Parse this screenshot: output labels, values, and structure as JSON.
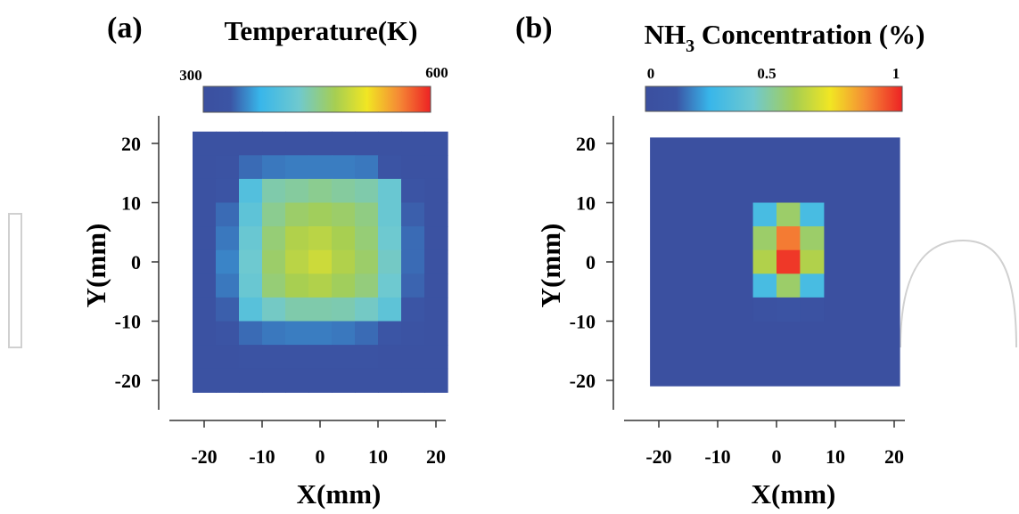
{
  "chart_data": [
    {
      "type": "heatmap",
      "panel_label": "(a)",
      "title": "Temperature(K)",
      "colorbar": {
        "min": 300,
        "max": 600,
        "tick_labels": [
          "300",
          "600"
        ],
        "tick_values": [
          300,
          600
        ],
        "colormap": "jet"
      },
      "xlabel": "X(mm)",
      "ylabel": "Y(mm)",
      "xlim": [
        -22,
        22
      ],
      "ylim": [
        -22,
        22
      ],
      "xticks": [
        "-20",
        "-10",
        "0",
        "10",
        "20"
      ],
      "yticks": [
        "20",
        "10",
        "0",
        "-10",
        "-20"
      ],
      "x_centers": [
        -20,
        -16,
        -12,
        -8,
        -4,
        0,
        4,
        8,
        12,
        16,
        20
      ],
      "y_centers": [
        20,
        16,
        12,
        8,
        4,
        0,
        -4,
        -8,
        -12,
        -16,
        -20
      ],
      "values": [
        [
          318,
          318,
          318,
          320,
          320,
          320,
          320,
          320,
          318,
          318,
          318
        ],
        [
          318,
          322,
          345,
          350,
          352,
          352,
          352,
          350,
          330,
          320,
          318
        ],
        [
          318,
          330,
          400,
          440,
          445,
          450,
          445,
          440,
          420,
          330,
          318
        ],
        [
          318,
          345,
          410,
          450,
          465,
          470,
          465,
          455,
          420,
          340,
          318
        ],
        [
          318,
          350,
          420,
          460,
          480,
          485,
          475,
          460,
          425,
          345,
          318
        ],
        [
          318,
          355,
          425,
          465,
          485,
          495,
          480,
          465,
          430,
          345,
          318
        ],
        [
          318,
          350,
          420,
          460,
          475,
          480,
          470,
          458,
          425,
          342,
          318
        ],
        [
          318,
          340,
          405,
          430,
          440,
          440,
          438,
          430,
          410,
          335,
          318
        ],
        [
          318,
          328,
          345,
          350,
          352,
          352,
          350,
          345,
          335,
          322,
          318
        ],
        [
          318,
          320,
          322,
          325,
          325,
          325,
          325,
          322,
          320,
          318,
          318
        ],
        [
          318,
          318,
          318,
          318,
          318,
          318,
          318,
          318,
          318,
          318,
          318
        ]
      ]
    },
    {
      "type": "heatmap",
      "panel_label": "(b)",
      "title_main": "NH",
      "title_sub": "3",
      "title_rest": " Concentration (%)",
      "colorbar": {
        "min": 0,
        "max": 1,
        "tick_labels": [
          "0",
          "0.5",
          "1"
        ],
        "tick_values": [
          0,
          0.5,
          1
        ],
        "colormap": "jet"
      },
      "xlabel": "X(mm)",
      "ylabel": "Y(mm)",
      "xlim": [
        -22,
        22
      ],
      "ylim": [
        -22,
        22
      ],
      "xticks": [
        "-20",
        "-10",
        "0",
        "10",
        "20"
      ],
      "yticks": [
        "20",
        "10",
        "0",
        "-10",
        "-20"
      ],
      "x_centers": [
        -2,
        2,
        6
      ],
      "y_centers": [
        8,
        4,
        0,
        -4,
        -8
      ],
      "background_value": 0.02,
      "values": [
        [
          0.3,
          0.55,
          0.3
        ],
        [
          0.55,
          0.88,
          0.55
        ],
        [
          0.6,
          0.97,
          0.6
        ],
        [
          0.3,
          0.55,
          0.3
        ],
        [
          0.05,
          0.08,
          0.05
        ]
      ]
    }
  ]
}
